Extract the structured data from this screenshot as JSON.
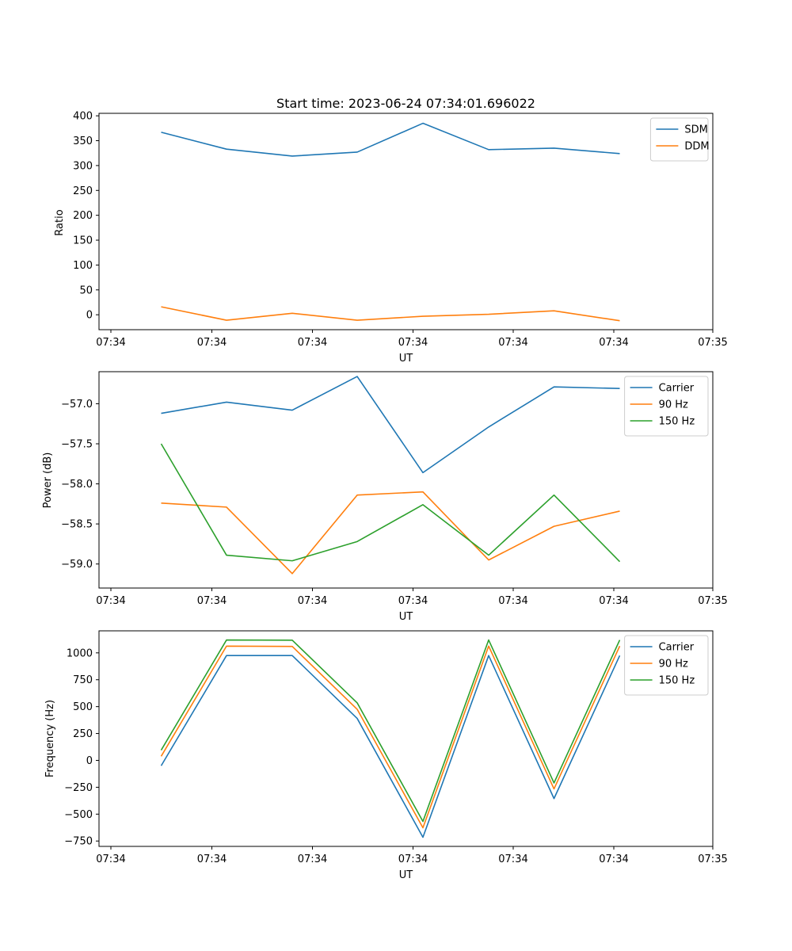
{
  "chart_data": [
    {
      "type": "line",
      "title": "Start time: 2023-06-24 07:34:01.696022",
      "xlabel": "UT",
      "ylabel": "Ratio",
      "x_tick_labels": [
        "07:34",
        "07:34",
        "07:34",
        "07:34",
        "07:34",
        "07:34",
        "07:34",
        "07:35"
      ],
      "y_ticks": [
        0,
        50,
        100,
        150,
        200,
        250,
        300,
        350,
        400
      ],
      "ylim": [
        -30,
        405
      ],
      "legend": "upper right",
      "grid": false,
      "series": [
        {
          "name": "SDM",
          "color": "#1f77b4",
          "values": [
            367,
            333,
            319,
            327,
            385,
            332,
            335,
            324
          ]
        },
        {
          "name": "DDM",
          "color": "#ff7f0e",
          "values": [
            16,
            -11,
            3,
            -11,
            -3,
            1,
            8,
            -12
          ]
        }
      ]
    },
    {
      "type": "line",
      "title": "",
      "xlabel": "UT",
      "ylabel": "Power (dB)",
      "x_tick_labels": [
        "07:34",
        "07:34",
        "07:34",
        "07:34",
        "07:34",
        "07:34",
        "07:34",
        "07:35"
      ],
      "y_ticks": [
        -59.0,
        -58.5,
        -58.0,
        -57.5,
        -57.0
      ],
      "y_tick_labels": [
        "−59.0",
        "−58.5",
        "−58.0",
        "−57.5",
        "−57.0"
      ],
      "ylim": [
        -59.3,
        -56.6
      ],
      "legend": "upper right",
      "grid": false,
      "series": [
        {
          "name": "Carrier",
          "color": "#1f77b4",
          "values": [
            -57.12,
            -56.98,
            -57.08,
            -56.66,
            -57.86,
            -57.29,
            -56.79,
            -56.81
          ]
        },
        {
          "name": "90 Hz",
          "color": "#ff7f0e",
          "values": [
            -58.24,
            -58.29,
            -59.12,
            -58.14,
            -58.1,
            -58.95,
            -58.53,
            -58.34
          ]
        },
        {
          "name": "150 Hz",
          "color": "#2ca02c",
          "values": [
            -57.5,
            -58.89,
            -58.96,
            -58.72,
            -58.26,
            -58.89,
            -58.14,
            -58.97
          ]
        }
      ]
    },
    {
      "type": "line",
      "title": "",
      "xlabel": "UT",
      "ylabel": "Frequency (Hz)",
      "x_tick_labels": [
        "07:34",
        "07:34",
        "07:34",
        "07:34",
        "07:34",
        "07:34",
        "07:34",
        "07:35"
      ],
      "y_ticks": [
        -750,
        -500,
        -250,
        0,
        250,
        500,
        750,
        1000
      ],
      "y_tick_labels": [
        "−750",
        "−500",
        "−250",
        "0",
        "250",
        "500",
        "750",
        "1000"
      ],
      "ylim": [
        -800,
        1205
      ],
      "legend": "upper right",
      "grid": false,
      "series": [
        {
          "name": "Carrier",
          "color": "#1f77b4",
          "values": [
            -50,
            975,
            975,
            390,
            -715,
            975,
            -355,
            975
          ]
        },
        {
          "name": "90 Hz",
          "color": "#ff7f0e",
          "values": [
            38,
            1063,
            1060,
            475,
            -627,
            1063,
            -265,
            1063
          ]
        },
        {
          "name": "150 Hz",
          "color": "#2ca02c",
          "values": [
            95,
            1120,
            1118,
            535,
            -568,
            1120,
            -210,
            1120
          ]
        }
      ]
    }
  ]
}
